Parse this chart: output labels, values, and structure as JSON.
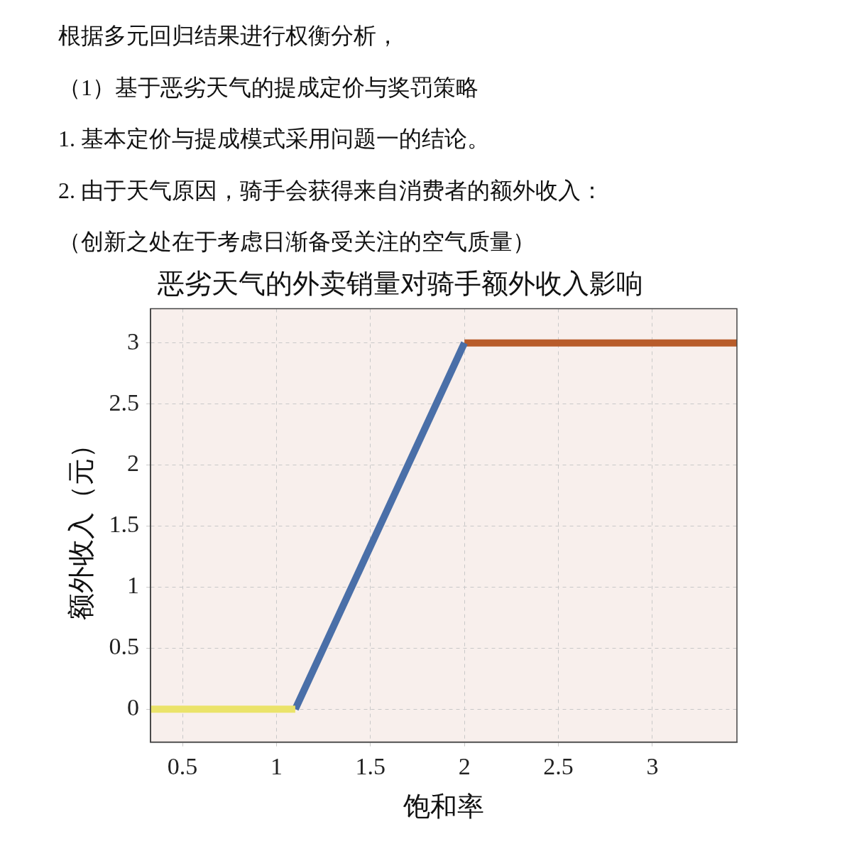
{
  "chart_data": {
    "type": "line",
    "title": "恶劣天气的外卖销量对骑手额外收入影响",
    "xlabel": "饱和率",
    "ylabel": "额外收入（元）",
    "annotations": [
      "根据多元回归结果进行权衡分析，",
      "（1）基于恶劣天气的提成定价与奖罚策略",
      "1. 基本定价与提成模式采用问题一的结论。",
      "2. 由于天气原因，骑手会获得来自消费者的额外收入：",
      "（创新之处在于考虑日渐备受关注的空气质量）"
    ],
    "series": [
      {
        "color": "#ebe36a",
        "x": [
          0.33,
          1.1
        ],
        "values": [
          0,
          0
        ]
      },
      {
        "color": "#4a6fa8",
        "x": [
          1.1,
          2
        ],
        "values": [
          0,
          3
        ]
      },
      {
        "color": "#b85c2a",
        "x": [
          2,
          3.45
        ],
        "values": [
          3,
          3
        ]
      }
    ],
    "xlim": [
      0.33,
      3.45
    ],
    "xticks": [
      0.5,
      1,
      1.5,
      2,
      2.5,
      3
    ],
    "ylim": [
      -0.27,
      3.28
    ],
    "yticks": [
      0,
      0.5,
      1,
      1.5,
      2,
      2.5,
      3
    ],
    "grid": true,
    "legend": false,
    "marker": "none",
    "line_style": "solid"
  }
}
